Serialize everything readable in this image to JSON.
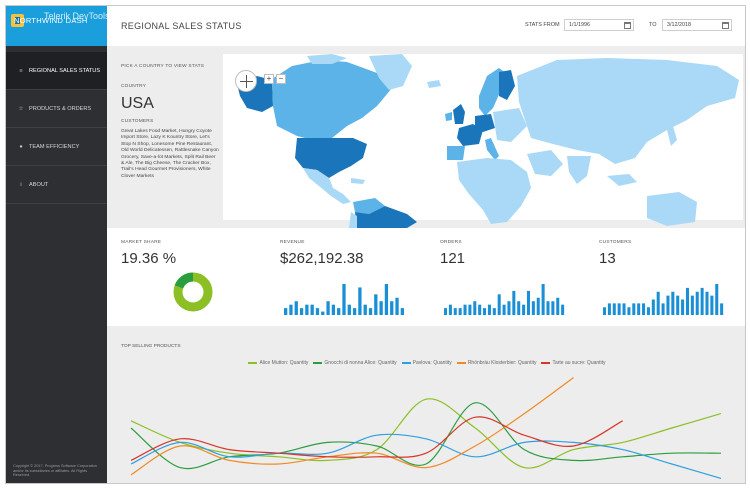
{
  "app": {
    "logo_text": "NORTHWIND DASH",
    "overlay_label": "Telerik DevTools"
  },
  "sidebar": {
    "items": [
      {
        "label": "REGIONAL SALES STATUS",
        "icon": "menu-icon",
        "active": true
      },
      {
        "label": "PRODUCTS & ORDERS",
        "icon": "star-icon",
        "active": false
      },
      {
        "label": "TEAM EFFICIENCY",
        "icon": "dot-icon",
        "active": false
      },
      {
        "label": "ABOUT",
        "icon": "info-icon",
        "active": false
      }
    ],
    "copyright": "Copyright © 2017, Progress Software Corporation and/or its subsidiaries or affiliates. All Rights Reserved."
  },
  "header": {
    "title": "REGIONAL SALES STATUS",
    "stats_from_label": "STATS FROM",
    "from_date": "1/1/1996",
    "to_label": "TO",
    "to_date": "3/12/2018"
  },
  "map": {
    "pick_label": "PICK A COUNTRY TO VIEW STATS",
    "country_label": "COUNTRY",
    "country_value": "USA",
    "customers_label": "CUSTOMERS",
    "customers_text": "Great Lakes Food Market, Hungry Coyote Import Store, Lazy K Kountry Store, Let's Stop N Shop, Lonesome Pine Restaurant, Old World Delicatessen, Rattlesnake Canyon Grocery, Save-a-lot Markets, Split Rail Beer & Ale, The Big Cheese, The Cracker Box, Trail's Head Gourmet Provisioners, White Clover Markets",
    "zoom_in": "+",
    "zoom_out": "−",
    "colors": {
      "ocean": "#ffffff",
      "land_light": "#a9d9f6",
      "land_mid": "#5bb3e8",
      "land_selected": "#1b75bb"
    }
  },
  "kpis": {
    "market_share": {
      "label": "MARKET SHARE",
      "value": "19.36 %",
      "fraction": 0.1936
    },
    "revenue": {
      "label": "REVENUE",
      "value": "$262,192.38",
      "bars": [
        2,
        3,
        4,
        2,
        3,
        3,
        2,
        1,
        4,
        3,
        2,
        9,
        3,
        2,
        8,
        3,
        2,
        6,
        4,
        9,
        4,
        5,
        2
      ]
    },
    "orders": {
      "label": "ORDERS",
      "value": "121",
      "bars": [
        2,
        3,
        2,
        2,
        3,
        3,
        4,
        3,
        2,
        3,
        2,
        6,
        3,
        4,
        7,
        4,
        3,
        7,
        4,
        5,
        9,
        4,
        4,
        5,
        3
      ]
    },
    "customers": {
      "label": "CUSTOMERS",
      "value": "13",
      "bars": [
        2,
        3,
        3,
        3,
        3,
        2,
        3,
        3,
        3,
        2,
        4,
        6,
        3,
        5,
        6,
        5,
        4,
        7,
        5,
        6,
        7,
        6,
        5,
        8,
        3
      ]
    }
  },
  "chart_data": {
    "type": "line",
    "title": "TOP SELLING PRODUCTS",
    "series": [
      {
        "name": "Alice Mutton: Quantity",
        "color": "#8cbf24",
        "values": [
          34,
          22,
          16,
          14,
          12,
          18,
          46,
          30,
          8,
          18,
          22,
          30,
          38
        ]
      },
      {
        "name": "Gnocchi di nonna Alice: Quantity",
        "color": "#2a9e3f",
        "values": [
          30,
          8,
          14,
          16,
          22,
          20,
          10,
          44,
          18,
          12,
          14,
          16,
          16
        ]
      },
      {
        "name": "Pavlova: Quantity",
        "color": "#2f9fe0",
        "values": [
          10,
          22,
          14,
          16,
          16,
          26,
          24,
          14,
          22,
          22,
          18,
          10,
          2
        ]
      },
      {
        "name": "Rhönbräu Klosterbier: Quantity",
        "color": "#f08a24",
        "values": [
          4,
          20,
          12,
          10,
          14,
          16,
          8,
          20,
          38,
          58
        ]
      },
      {
        "name": "Tarte au sucre: Quantity",
        "color": "#d9352b",
        "values": [
          12,
          24,
          18,
          16,
          14,
          14,
          16,
          36,
          26,
          20,
          34
        ]
      }
    ]
  }
}
